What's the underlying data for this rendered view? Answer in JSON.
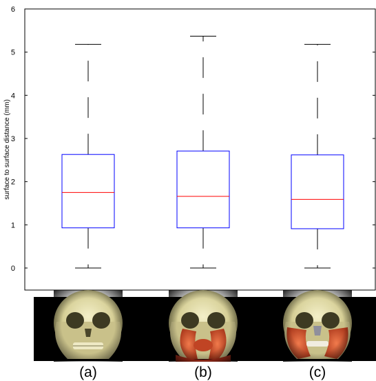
{
  "chart_data": {
    "type": "box",
    "ylabel": "surface to surface distance (mm)",
    "ylim": [
      0,
      6
    ],
    "yticks": [
      0,
      1,
      2,
      3,
      4,
      5,
      6
    ],
    "grid": false,
    "categories": [
      "(a)",
      "(b)",
      "(c)"
    ],
    "boxes": [
      {
        "name": "(a)",
        "min": 0,
        "q1": 0.93,
        "median": 1.75,
        "q3": 2.63,
        "max": 5.18
      },
      {
        "name": "(b)",
        "min": 0,
        "q1": 0.93,
        "median": 1.66,
        "q3": 2.71,
        "max": 5.37
      },
      {
        "name": "(c)",
        "min": 0,
        "q1": 0.91,
        "median": 1.59,
        "q3": 2.62,
        "max": 5.18
      }
    ],
    "colors": {
      "box": "#0000ff",
      "median": "#ff0000",
      "whisker": "#000000",
      "image_background": "#000000",
      "skull": "#e4dfab",
      "muscle": "#d8542c"
    }
  },
  "panel_images": [
    {
      "label": "(a)",
      "subject": "skull-render"
    },
    {
      "label": "(b)",
      "subject": "skull-render-with-muscles"
    },
    {
      "label": "(c)",
      "subject": "skull-render-with-muscles"
    }
  ]
}
